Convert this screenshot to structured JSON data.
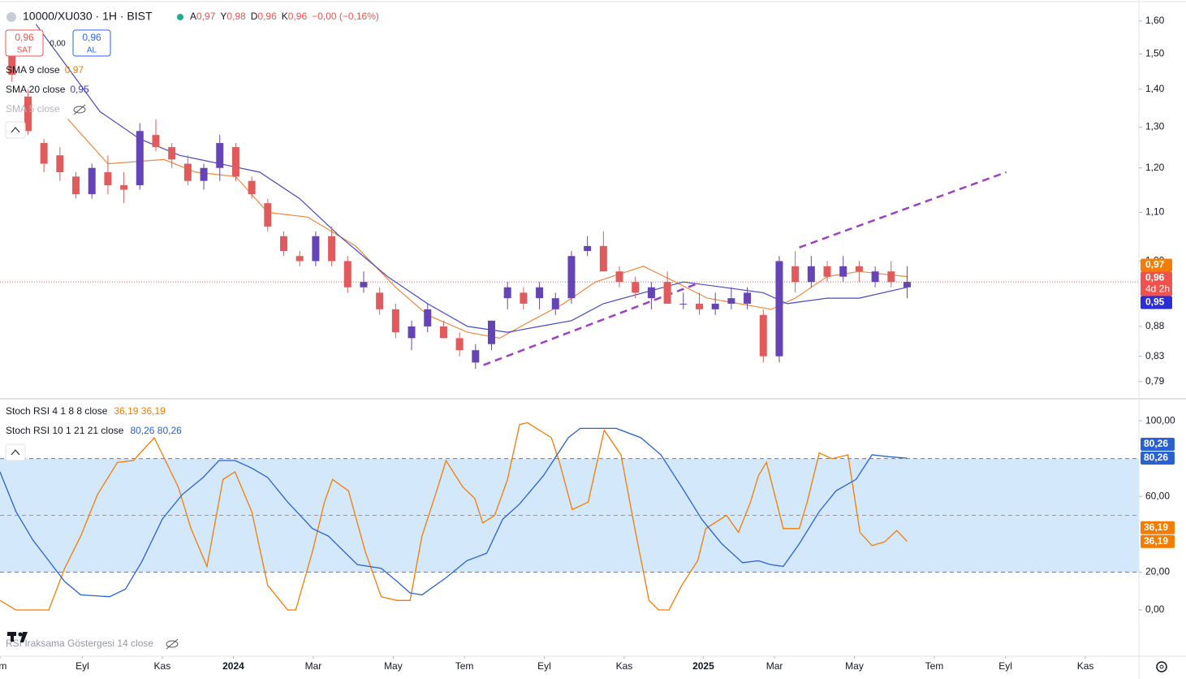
{
  "header": {
    "title": "10000/XU030 · 1H · BIST",
    "ohlc": [
      {
        "label": "A",
        "value": "0,97"
      },
      {
        "label": "Y",
        "value": "0,98"
      },
      {
        "label": "D",
        "value": "0,96"
      },
      {
        "label": "K",
        "value": "0,96"
      }
    ],
    "change": "−0,00 (−0,16%)"
  },
  "trade": {
    "sell_price": "0,96",
    "sell_label": "SAT",
    "spread": "0,00",
    "buy_price": "0,96",
    "buy_label": "AL"
  },
  "indicators": [
    {
      "name": "SMA 9 close",
      "value": "0,97"
    },
    {
      "name": "SMA 20 close",
      "value": "0,95"
    },
    {
      "name": "SMA 5 close"
    }
  ],
  "chart_data": [
    {
      "type": "candlestick",
      "log": true,
      "xlim": [
        -0.5,
        142
      ],
      "ylim": [
        0.765,
        1.667
      ],
      "grid": false,
      "up_color": "#6545b5",
      "down_color": "#e05c5c",
      "yticks": [
        {
          "value": 1.6,
          "label": "1,60"
        },
        {
          "value": 1.5,
          "label": "1,50"
        },
        {
          "value": 1.4,
          "label": "1,40"
        },
        {
          "value": 1.3,
          "label": "1,30"
        },
        {
          "value": 1.2,
          "label": "1,20"
        },
        {
          "value": 1.1,
          "label": "1,10"
        },
        {
          "value": 1.0,
          "label": "1,00"
        },
        {
          "value": 0.88,
          "label": "0,88"
        },
        {
          "value": 0.83,
          "label": "0,83"
        },
        {
          "value": 0.79,
          "label": "0,79"
        }
      ],
      "xticks": [
        {
          "value": -0.5,
          "label": "em"
        },
        {
          "value": 9.8,
          "label": "Eyl"
        },
        {
          "value": 19.8,
          "label": "Kas"
        },
        {
          "value": 28.7,
          "label": "2024"
        },
        {
          "value": 38.7,
          "label": "Mar"
        },
        {
          "value": 48.7,
          "label": "May"
        },
        {
          "value": 57.6,
          "label": "Tem"
        },
        {
          "value": 67.6,
          "label": "Eyl"
        },
        {
          "value": 77.6,
          "label": "Kas"
        },
        {
          "value": 87.5,
          "label": "2025"
        },
        {
          "value": 96.4,
          "label": "Mar"
        },
        {
          "value": 106.4,
          "label": "May"
        },
        {
          "value": 116.4,
          "label": "Tem"
        },
        {
          "value": 125.3,
          "label": "Eyl"
        },
        {
          "value": 135.3,
          "label": "Kas"
        }
      ],
      "candles": [
        {
          "x": 1,
          "o": 1.5,
          "h": 1.52,
          "l": 1.42,
          "c": 1.44
        },
        {
          "x": 3,
          "o": 1.38,
          "h": 1.4,
          "l": 1.28,
          "c": 1.29
        },
        {
          "x": 5,
          "o": 1.26,
          "h": 1.27,
          "l": 1.19,
          "c": 1.21
        },
        {
          "x": 7,
          "o": 1.23,
          "h": 1.25,
          "l": 1.17,
          "c": 1.19
        },
        {
          "x": 9,
          "o": 1.18,
          "h": 1.19,
          "l": 1.13,
          "c": 1.14
        },
        {
          "x": 11,
          "o": 1.14,
          "h": 1.21,
          "l": 1.13,
          "c": 1.2
        },
        {
          "x": 13,
          "o": 1.19,
          "h": 1.23,
          "l": 1.14,
          "c": 1.16
        },
        {
          "x": 15,
          "o": 1.16,
          "h": 1.19,
          "l": 1.12,
          "c": 1.15
        },
        {
          "x": 17,
          "o": 1.16,
          "h": 1.31,
          "l": 1.15,
          "c": 1.29
        },
        {
          "x": 19,
          "o": 1.28,
          "h": 1.32,
          "l": 1.24,
          "c": 1.25
        },
        {
          "x": 21,
          "o": 1.25,
          "h": 1.26,
          "l": 1.2,
          "c": 1.22
        },
        {
          "x": 23,
          "o": 1.21,
          "h": 1.23,
          "l": 1.16,
          "c": 1.17
        },
        {
          "x": 25,
          "o": 1.17,
          "h": 1.21,
          "l": 1.15,
          "c": 1.2
        },
        {
          "x": 27,
          "o": 1.2,
          "h": 1.28,
          "l": 1.17,
          "c": 1.26
        },
        {
          "x": 29,
          "o": 1.25,
          "h": 1.26,
          "l": 1.17,
          "c": 1.18
        },
        {
          "x": 31,
          "o": 1.17,
          "h": 1.18,
          "l": 1.13,
          "c": 1.14
        },
        {
          "x": 33,
          "o": 1.12,
          "h": 1.13,
          "l": 1.06,
          "c": 1.07
        },
        {
          "x": 35,
          "o": 1.05,
          "h": 1.06,
          "l": 1.01,
          "c": 1.02
        },
        {
          "x": 37,
          "o": 1.01,
          "h": 1.02,
          "l": 0.99,
          "c": 1.0
        },
        {
          "x": 39,
          "o": 1.0,
          "h": 1.06,
          "l": 0.99,
          "c": 1.05
        },
        {
          "x": 41,
          "o": 1.05,
          "h": 1.07,
          "l": 0.99,
          "c": 1.0
        },
        {
          "x": 43,
          "o": 1.0,
          "h": 1.01,
          "l": 0.94,
          "c": 0.95
        },
        {
          "x": 45,
          "o": 0.95,
          "h": 0.98,
          "l": 0.94,
          "c": 0.96
        },
        {
          "x": 47,
          "o": 0.94,
          "h": 0.95,
          "l": 0.9,
          "c": 0.91
        },
        {
          "x": 49,
          "o": 0.91,
          "h": 0.92,
          "l": 0.86,
          "c": 0.87
        },
        {
          "x": 51,
          "o": 0.86,
          "h": 0.89,
          "l": 0.84,
          "c": 0.88
        },
        {
          "x": 53,
          "o": 0.88,
          "h": 0.92,
          "l": 0.87,
          "c": 0.91
        },
        {
          "x": 55,
          "o": 0.88,
          "h": 0.89,
          "l": 0.86,
          "c": 0.86
        },
        {
          "x": 57,
          "o": 0.86,
          "h": 0.87,
          "l": 0.83,
          "c": 0.84
        },
        {
          "x": 59,
          "o": 0.82,
          "h": 0.85,
          "l": 0.81,
          "c": 0.84
        },
        {
          "x": 61,
          "o": 0.85,
          "h": 0.89,
          "l": 0.84,
          "c": 0.89
        },
        {
          "x": 63,
          "o": 0.93,
          "h": 0.96,
          "l": 0.91,
          "c": 0.95
        },
        {
          "x": 65,
          "o": 0.94,
          "h": 0.95,
          "l": 0.91,
          "c": 0.92
        },
        {
          "x": 67,
          "o": 0.93,
          "h": 0.96,
          "l": 0.91,
          "c": 0.95
        },
        {
          "x": 69,
          "o": 0.91,
          "h": 0.94,
          "l": 0.9,
          "c": 0.93
        },
        {
          "x": 71,
          "o": 0.93,
          "h": 1.02,
          "l": 0.92,
          "c": 1.01
        },
        {
          "x": 73,
          "o": 1.02,
          "h": 1.05,
          "l": 1.01,
          "c": 1.03
        },
        {
          "x": 75,
          "o": 1.03,
          "h": 1.06,
          "l": 0.98,
          "c": 0.98
        },
        {
          "x": 77,
          "o": 0.98,
          "h": 0.99,
          "l": 0.95,
          "c": 0.96
        },
        {
          "x": 79,
          "o": 0.96,
          "h": 0.97,
          "l": 0.93,
          "c": 0.94
        },
        {
          "x": 81,
          "o": 0.93,
          "h": 0.96,
          "l": 0.91,
          "c": 0.95
        },
        {
          "x": 83,
          "o": 0.96,
          "h": 0.98,
          "l": 0.92,
          "c": 0.92
        },
        {
          "x": 85,
          "o": 0.92,
          "h": 0.94,
          "l": 0.91,
          "c": 0.92
        },
        {
          "x": 87,
          "o": 0.92,
          "h": 0.94,
          "l": 0.9,
          "c": 0.91
        },
        {
          "x": 89,
          "o": 0.91,
          "h": 0.94,
          "l": 0.9,
          "c": 0.92
        },
        {
          "x": 91,
          "o": 0.92,
          "h": 0.95,
          "l": 0.91,
          "c": 0.93
        },
        {
          "x": 93,
          "o": 0.92,
          "h": 0.95,
          "l": 0.91,
          "c": 0.94
        },
        {
          "x": 95,
          "o": 0.9,
          "h": 0.91,
          "l": 0.82,
          "c": 0.83
        },
        {
          "x": 97,
          "o": 0.83,
          "h": 1.01,
          "l": 0.82,
          "c": 1.0
        },
        {
          "x": 99,
          "o": 0.99,
          "h": 1.02,
          "l": 0.94,
          "c": 0.96
        },
        {
          "x": 101,
          "o": 0.96,
          "h": 1.01,
          "l": 0.95,
          "c": 0.99
        },
        {
          "x": 103,
          "o": 0.99,
          "h": 1.0,
          "l": 0.96,
          "c": 0.97
        },
        {
          "x": 105,
          "o": 0.97,
          "h": 1.01,
          "l": 0.96,
          "c": 0.99
        },
        {
          "x": 107,
          "o": 0.99,
          "h": 1.0,
          "l": 0.96,
          "c": 0.98
        },
        {
          "x": 109,
          "o": 0.96,
          "h": 0.99,
          "l": 0.95,
          "c": 0.98
        },
        {
          "x": 111,
          "o": 0.98,
          "h": 1.0,
          "l": 0.95,
          "c": 0.96
        },
        {
          "x": 113,
          "o": 0.95,
          "h": 0.99,
          "l": 0.93,
          "c": 0.96
        }
      ],
      "series": [
        {
          "name": "SMA 9",
          "color": "#f0883e",
          "x": [
            8,
            13,
            20,
            24,
            29,
            33,
            38,
            44,
            49,
            53,
            58,
            62,
            66,
            70,
            74,
            80,
            84,
            88,
            92,
            96,
            99,
            103,
            107,
            113
          ],
          "values": [
            1.32,
            1.21,
            1.22,
            1.19,
            1.18,
            1.1,
            1.09,
            1.03,
            0.95,
            0.9,
            0.87,
            0.86,
            0.89,
            0.92,
            0.96,
            0.99,
            0.96,
            0.93,
            0.92,
            0.91,
            0.93,
            0.97,
            0.98,
            0.97
          ]
        },
        {
          "name": "SMA 20",
          "color": "#4848c0",
          "x": [
            4,
            8,
            12,
            17,
            22,
            27,
            32,
            37,
            42,
            48,
            53,
            58,
            63,
            67,
            71,
            75,
            80,
            85,
            90,
            95,
            98,
            103,
            107,
            113
          ],
          "values": [
            1.59,
            1.46,
            1.34,
            1.27,
            1.23,
            1.21,
            1.19,
            1.13,
            1.05,
            0.97,
            0.92,
            0.88,
            0.87,
            0.88,
            0.89,
            0.92,
            0.94,
            0.96,
            0.95,
            0.94,
            0.92,
            0.93,
            0.93,
            0.95
          ]
        }
      ],
      "trend_lines": [
        {
          "color": "#9c3fc4",
          "x": [
            60,
            86.6
          ],
          "values": [
            0.816,
            0.956
          ]
        },
        {
          "color": "#9c3fc4",
          "x": [
            99.5,
            125.4
          ],
          "values": [
            1.027,
            1.19
          ]
        }
      ],
      "last_price": 0.96,
      "price_labels": [
        {
          "value": 0.97,
          "label": "0,97",
          "color": "#f57c00"
        },
        {
          "value": 0.96,
          "label": "0,96",
          "sub": "4d 2h",
          "color": "#ef5350"
        },
        {
          "value": 0.95,
          "label": "0,95",
          "color": "#2a2ed6"
        }
      ]
    },
    {
      "type": "line",
      "xlim": [
        -0.5,
        142
      ],
      "ylim": [
        -11.6,
        111.2
      ],
      "yticks": [
        {
          "value": 100,
          "label": "100,00"
        },
        {
          "value": 60,
          "label": "60,00"
        },
        {
          "value": 20,
          "label": "20,00"
        },
        {
          "value": 0,
          "label": "0,00"
        }
      ],
      "bands": [
        20,
        80
      ],
      "midline": 50,
      "band_color": "#d3e8fb",
      "legend": [
        {
          "name": "Stoch RSI 4 1 8 8 close",
          "value": "36,19 36,19",
          "color": "#f57c00"
        },
        {
          "name": "Stoch RSI 10 1 21 21 close",
          "value": "80,26 80,26",
          "color": "#2962d0"
        }
      ],
      "series": [
        {
          "name": "Stoch RSI 4 1 8 8",
          "color": "#f57c00",
          "x": [
            -0.5,
            1.5,
            5.6,
            7.6,
            9.6,
            11.7,
            14.2,
            16.2,
            18.8,
            21.8,
            23.4,
            25.4,
            27.4,
            28.9,
            31,
            33,
            35.5,
            36.5,
            38.6,
            40.1,
            41.1,
            43.1,
            45.2,
            47.2,
            49.2,
            50.8,
            52.3,
            54.3,
            55.3,
            57.4,
            58.9,
            59.9,
            61.4,
            63,
            64.5,
            65.5,
            68.5,
            69.5,
            71.1,
            73.1,
            75.1,
            77.2,
            78.7,
            80.7,
            81.9,
            83.2,
            84.8,
            86.8,
            87.8,
            90.4,
            91.9,
            93.4,
            94.4,
            95.4,
            97.5,
            99.5,
            100.5,
            102,
            103.6,
            105.6,
            107.1,
            108.6,
            110.2,
            111.7,
            113
          ],
          "values": [
            5,
            0,
            0,
            22,
            39,
            61,
            78,
            79,
            91,
            65,
            43,
            23,
            69,
            73,
            52,
            13,
            0,
            0,
            31,
            57,
            69,
            63,
            31,
            7,
            5,
            5,
            39,
            65,
            79,
            65,
            59,
            46,
            50,
            69,
            98,
            99,
            91,
            78,
            53,
            57,
            95,
            82,
            48,
            5,
            0,
            0,
            13,
            26,
            43,
            50,
            41,
            57,
            71,
            78,
            43,
            43,
            57,
            83,
            80,
            82,
            41,
            34,
            36,
            42,
            36.19
          ]
        },
        {
          "name": "Stoch RSI 10 1 21 21",
          "color": "#2962d0",
          "x": [
            -0.5,
            1.5,
            3.6,
            5.6,
            7.6,
            9.6,
            13.2,
            15.2,
            17.3,
            19.8,
            22.3,
            24.9,
            26.9,
            28.9,
            31,
            33,
            35.5,
            38.6,
            40.6,
            44.2,
            47.2,
            49.2,
            50.8,
            52.3,
            55.3,
            57.9,
            60.4,
            62.4,
            64.5,
            67.5,
            70.6,
            72.1,
            76.6,
            79.7,
            82.2,
            84.8,
            87.3,
            89.8,
            92.4,
            94.4,
            95.9,
            97.5,
            99.5,
            102,
            104.1,
            106.6,
            108.6,
            110.7,
            113
          ],
          "values": [
            73,
            52,
            37,
            26,
            15,
            8,
            7,
            11,
            26,
            48,
            61,
            70,
            79,
            79,
            75,
            70,
            57,
            43,
            39,
            24,
            22,
            15,
            9,
            8,
            17,
            26,
            30,
            48,
            56,
            71,
            91,
            96,
            96,
            91,
            82,
            65,
            48,
            35,
            25,
            26,
            24,
            23,
            35,
            52,
            63,
            69,
            82,
            81,
            80.26
          ]
        }
      ],
      "axis_labels": [
        {
          "value": 80.26,
          "label": "80,26",
          "color": "#2962d0",
          "stack": 1
        },
        {
          "value": 80.26,
          "label": "80,26",
          "color": "#2962d0",
          "stack": 0
        },
        {
          "value": 36.19,
          "label": "36,19",
          "color": "#f57c00",
          "stack": 1
        },
        {
          "value": 36.19,
          "label": "36,19",
          "color": "#f57c00",
          "stack": 0
        }
      ]
    }
  ],
  "collapsed_indicator": "RSI Iraksama Göstergesi 14 close"
}
